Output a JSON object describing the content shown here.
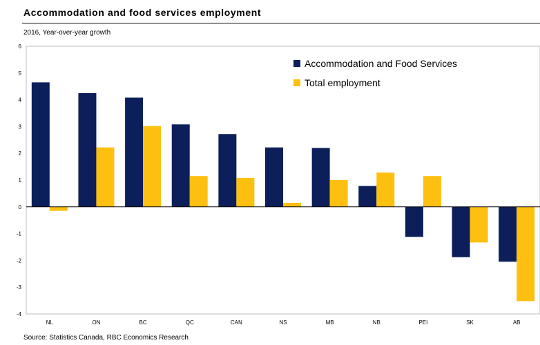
{
  "chart_data": {
    "type": "bar",
    "title": "Accommodation and food services employment",
    "subtitle": "2016, Year-over-year growth",
    "source": "Source: Statistics Canada, RBC Economics Research",
    "categories": [
      "NL",
      "ON",
      "BC",
      "QC",
      "CAN",
      "NS",
      "MB",
      "NB",
      "PEI",
      "SK",
      "AB"
    ],
    "series": [
      {
        "name": "Accommodation and Food Services",
        "color": "#0c1f5a",
        "values": [
          4.65,
          4.25,
          4.08,
          3.08,
          2.72,
          2.22,
          2.2,
          0.78,
          -1.12,
          -1.88,
          -2.05
        ]
      },
      {
        "name": "Total employment",
        "color": "#fec010",
        "values": [
          -0.15,
          2.22,
          3.02,
          1.15,
          1.08,
          0.15,
          1.0,
          1.28,
          1.15,
          -1.33,
          -3.52
        ]
      }
    ],
    "ylim": [
      -4,
      6
    ],
    "yticks": [
      "-4",
      "-3",
      "-2",
      "-1",
      "0",
      "1",
      "2",
      "3",
      "4",
      "5",
      "6"
    ],
    "grid": false,
    "legend_position": "top-right"
  }
}
